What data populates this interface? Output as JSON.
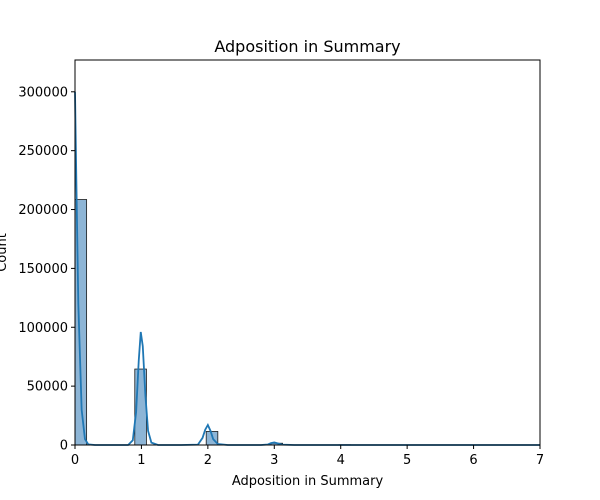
{
  "chart_data": {
    "type": "bar",
    "title": "Adposition in Summary",
    "xlabel": "Adposition in Summary",
    "ylabel": "Count",
    "xlim": [
      0,
      7
    ],
    "ylim": [
      0,
      327000
    ],
    "xticks": [
      "0",
      "1",
      "2",
      "3",
      "4",
      "5",
      "6",
      "7"
    ],
    "yticks": [
      "0",
      "50000",
      "100000",
      "150000",
      "200000",
      "250000",
      "300000"
    ],
    "grid": false,
    "bins": [
      {
        "x0": 0.0,
        "x1": 0.175,
        "value": 208500
      },
      {
        "x0": 0.9,
        "x1": 1.075,
        "value": 64500
      },
      {
        "x0": 1.975,
        "x1": 2.15,
        "value": 11500
      },
      {
        "x0": 2.95,
        "x1": 3.125,
        "value": 1500
      },
      {
        "x0": 3.975,
        "x1": 4.15,
        "value": 200
      }
    ],
    "kde": {
      "x": [
        0,
        0.02,
        0.05,
        0.1,
        0.15,
        0.2,
        0.3,
        0.5,
        0.8,
        0.87,
        0.92,
        0.96,
        0.99,
        1.02,
        1.06,
        1.1,
        1.15,
        1.25,
        1.6,
        1.85,
        1.92,
        1.96,
        2.0,
        2.04,
        2.08,
        2.15,
        2.3,
        2.8,
        2.9,
        2.95,
        3.0,
        3.05,
        3.12,
        3.3,
        4.0,
        5.0,
        6.0,
        7.0
      ],
      "y": [
        300000,
        225000,
        120000,
        30000,
        5000,
        500,
        0,
        0,
        0,
        4000,
        28000,
        72000,
        96000,
        84000,
        42000,
        12000,
        2000,
        0,
        0,
        300,
        6000,
        13000,
        17000,
        12000,
        5000,
        800,
        0,
        0,
        400,
        1600,
        2200,
        1400,
        300,
        0,
        0,
        0,
        0,
        0
      ]
    },
    "colors": {
      "bar_fill": "#8db5d6",
      "bar_edge": "#1a1a1a",
      "line": "#1f77b4"
    }
  }
}
